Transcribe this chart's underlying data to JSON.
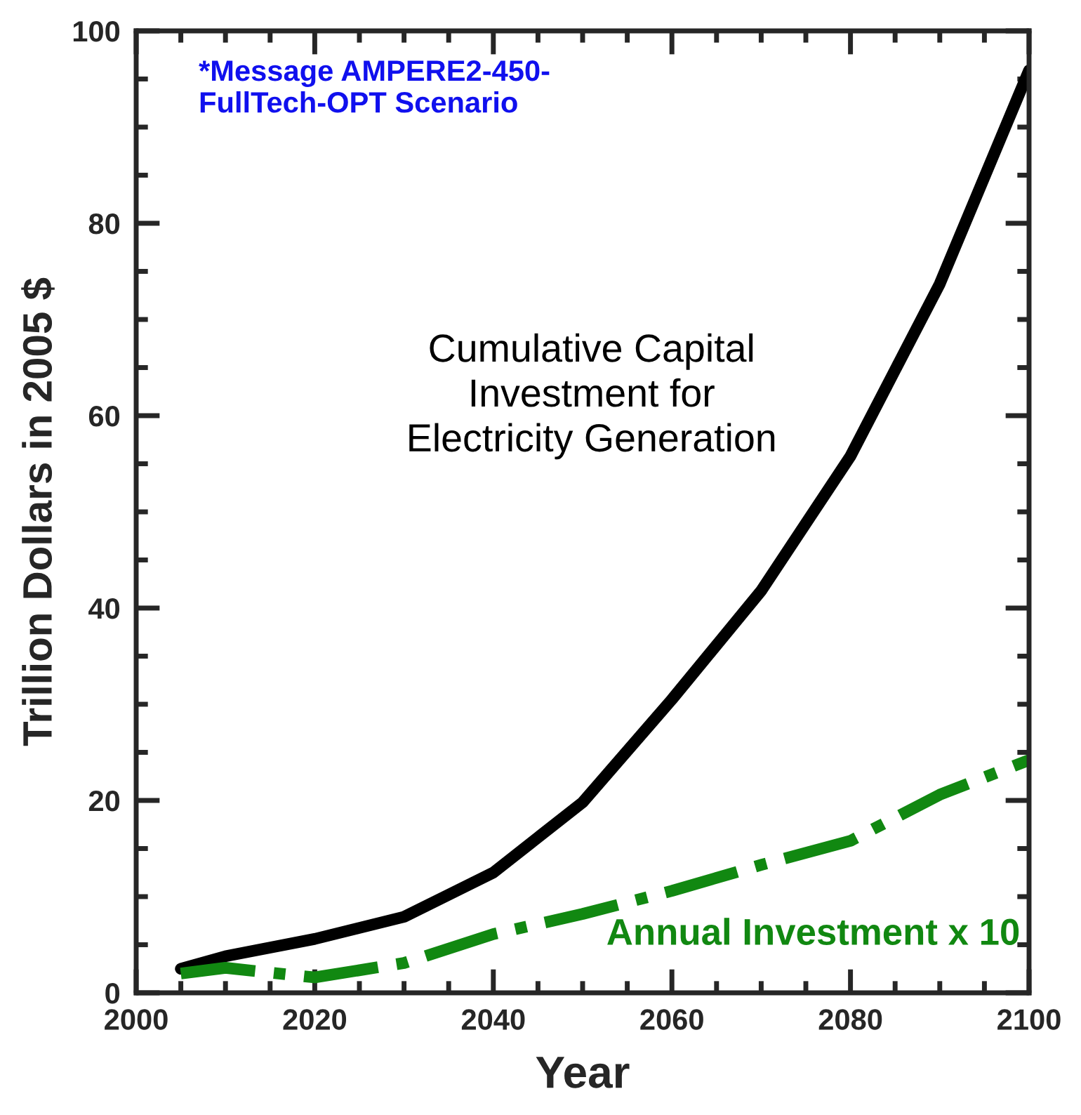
{
  "chart_data": {
    "type": "line",
    "xlabel": "Year",
    "ylabel": "Trillion Dollars in 2005 $",
    "x": [
      2005,
      2010,
      2020,
      2030,
      2040,
      2050,
      2060,
      2070,
      2080,
      2090,
      2100
    ],
    "series": [
      {
        "name": "Cumulative Capital\nInvestment for\nElectricity Generation",
        "color": "#000000",
        "line_style": "solid",
        "values": [
          2.5,
          3.8,
          5.6,
          7.9,
          12.5,
          19.8,
          30.5,
          41.8,
          55.8,
          73.7,
          95.9
        ]
      },
      {
        "name": "Annual Investment x 10",
        "color": "#118811",
        "line_style": "dashdot",
        "values": [
          2.0,
          2.6,
          1.6,
          3.1,
          6.1,
          8.2,
          10.6,
          13.3,
          15.8,
          20.6,
          24.2
        ]
      }
    ],
    "annotations": [
      "*Message AMPERE2-450-\nFullTech-OPT Scenario"
    ],
    "xlim": [
      2000,
      2100
    ],
    "xticks": [
      2000,
      2020,
      2040,
      2060,
      2080,
      2100
    ],
    "ylim": [
      0,
      100
    ],
    "yticks": [
      0,
      20,
      40,
      60,
      80,
      100
    ],
    "grid": false,
    "legend": false,
    "marker": "none"
  }
}
